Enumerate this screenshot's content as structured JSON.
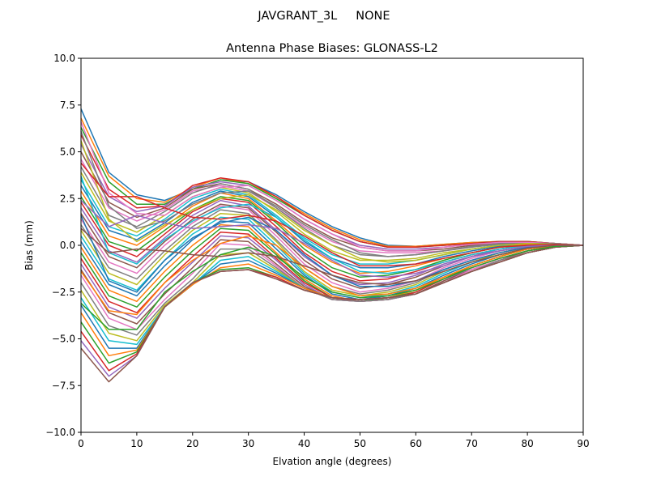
{
  "figure": {
    "suptitle": "JAVGRANT_3L     NONE"
  },
  "chart_data": {
    "type": "line",
    "title": "Antenna Phase Biases: GLONASS-L2",
    "xlabel": "Elvation angle (degrees)",
    "ylabel": "Bias (mm)",
    "xlim": [
      0,
      90
    ],
    "ylim": [
      -10,
      10
    ],
    "xticks": [
      0,
      10,
      20,
      30,
      40,
      50,
      60,
      70,
      80,
      90
    ],
    "xtick_labels": [
      "0",
      "10",
      "20",
      "30",
      "40",
      "50",
      "60",
      "70",
      "80",
      "90"
    ],
    "yticks": [
      -10,
      -7.5,
      -5,
      -2.5,
      0,
      2.5,
      5,
      7.5,
      10
    ],
    "ytick_labels": [
      "−10.0",
      "−7.5",
      "−5.0",
      "−2.5",
      "0.0",
      "2.5",
      "5.0",
      "7.5",
      "10.0"
    ],
    "grid": false,
    "legend": "none",
    "x": [
      0,
      5,
      10,
      15,
      20,
      25,
      30,
      35,
      40,
      45,
      50,
      55,
      60,
      65,
      70,
      75,
      80,
      85,
      90
    ],
    "colors": [
      "#1f77b4",
      "#ff7f0e",
      "#2ca02c",
      "#d62728",
      "#9467bd",
      "#8c564b",
      "#e377c2",
      "#7f7f7f",
      "#bcbd22",
      "#17becf"
    ],
    "series": [
      {
        "values": [
          7.3,
          3.9,
          2.7,
          2.4,
          3.0,
          3.5,
          3.4,
          2.7,
          1.8,
          1.0,
          0.4,
          0.0,
          -0.05,
          0.05,
          0.15,
          0.2,
          0.2,
          0.1,
          0.0
        ]
      },
      {
        "values": [
          6.8,
          3.7,
          2.5,
          2.3,
          3.1,
          3.6,
          3.3,
          2.6,
          1.7,
          0.9,
          0.3,
          -0.05,
          -0.05,
          0.05,
          0.15,
          0.2,
          0.2,
          0.1,
          0.0
        ]
      },
      {
        "values": [
          6.3,
          3.4,
          2.2,
          2.2,
          3.0,
          3.5,
          3.3,
          2.5,
          1.6,
          0.8,
          0.2,
          -0.1,
          -0.1,
          0.0,
          0.1,
          0.2,
          0.2,
          0.1,
          0.0
        ]
      },
      {
        "values": [
          5.9,
          3.0,
          2.0,
          2.1,
          3.2,
          3.6,
          3.4,
          2.6,
          1.6,
          0.8,
          0.2,
          -0.1,
          -0.1,
          0.0,
          0.1,
          0.2,
          0.2,
          0.1,
          0.0
        ]
      },
      {
        "values": [
          5.4,
          2.6,
          1.8,
          2.1,
          3.1,
          3.4,
          3.2,
          2.4,
          1.4,
          0.6,
          0.0,
          -0.2,
          -0.2,
          -0.1,
          0.05,
          0.15,
          0.15,
          0.1,
          0.0
        ]
      },
      {
        "values": [
          5.0,
          2.3,
          1.5,
          2.0,
          3.0,
          3.3,
          3.0,
          2.2,
          1.2,
          0.4,
          -0.1,
          -0.3,
          -0.3,
          -0.2,
          0.0,
          0.1,
          0.15,
          0.1,
          0.0
        ]
      },
      {
        "values": [
          4.6,
          2.0,
          1.3,
          1.9,
          2.9,
          3.2,
          2.9,
          2.0,
          1.0,
          0.2,
          -0.3,
          -0.4,
          -0.4,
          -0.3,
          -0.1,
          0.1,
          0.1,
          0.1,
          0.0
        ]
      },
      {
        "values": [
          4.2,
          1.6,
          1.0,
          1.8,
          2.8,
          3.3,
          3.0,
          2.0,
          0.9,
          0.0,
          -0.5,
          -0.6,
          -0.5,
          -0.3,
          -0.1,
          0.05,
          0.1,
          0.1,
          0.0
        ]
      },
      {
        "values": [
          3.9,
          1.3,
          0.7,
          1.6,
          2.6,
          3.1,
          2.8,
          1.8,
          0.6,
          -0.3,
          -0.8,
          -0.8,
          -0.7,
          -0.4,
          -0.2,
          0.0,
          0.1,
          0.05,
          0.0
        ]
      },
      {
        "values": [
          3.5,
          1.0,
          0.5,
          1.4,
          2.5,
          3.0,
          2.7,
          1.6,
          0.4,
          -0.5,
          -1.0,
          -1.0,
          -0.8,
          -0.5,
          -0.2,
          0.0,
          0.1,
          0.05,
          0.0
        ]
      },
      {
        "values": [
          3.2,
          0.8,
          0.3,
          1.2,
          2.3,
          2.9,
          2.6,
          1.5,
          0.2,
          -0.7,
          -1.2,
          -1.2,
          -1.0,
          -0.6,
          -0.3,
          -0.05,
          0.05,
          0.05,
          0.0
        ]
      },
      {
        "values": [
          2.9,
          0.5,
          0.0,
          1.0,
          2.1,
          2.8,
          2.5,
          1.3,
          0.0,
          -0.9,
          -1.5,
          -1.4,
          -1.1,
          -0.7,
          -0.4,
          -0.1,
          0.05,
          0.05,
          0.0
        ]
      },
      {
        "values": [
          2.6,
          0.2,
          -0.3,
          0.8,
          1.9,
          2.6,
          2.4,
          1.2,
          -0.2,
          -1.2,
          -1.7,
          -1.6,
          -1.3,
          -0.8,
          -0.4,
          -0.1,
          0.0,
          0.05,
          0.0
        ]
      },
      {
        "values": [
          2.3,
          0.0,
          -0.6,
          0.6,
          1.8,
          2.5,
          2.3,
          1.0,
          -0.4,
          -1.4,
          -1.9,
          -1.8,
          -1.4,
          -0.9,
          -0.5,
          -0.2,
          0.0,
          0.05,
          0.0
        ]
      },
      {
        "values": [
          2.0,
          -0.3,
          -0.9,
          0.4,
          1.6,
          2.4,
          2.1,
          0.8,
          -0.6,
          -1.6,
          -2.1,
          -2.0,
          -1.6,
          -1.0,
          -0.6,
          -0.2,
          0.0,
          0.0,
          0.0
        ]
      },
      {
        "values": [
          1.7,
          -0.6,
          -1.2,
          0.2,
          1.4,
          2.2,
          2.0,
          0.7,
          -0.8,
          -1.8,
          -2.3,
          -2.1,
          -1.7,
          -1.1,
          -0.6,
          -0.3,
          -0.05,
          0.0,
          0.0
        ]
      },
      {
        "values": [
          1.4,
          -0.9,
          -1.5,
          0.0,
          1.2,
          2.1,
          1.9,
          0.5,
          -1.0,
          -2.0,
          -2.5,
          -2.3,
          -1.9,
          -1.2,
          -0.7,
          -0.3,
          -0.05,
          0.0,
          0.0
        ]
      },
      {
        "values": [
          1.1,
          -1.2,
          -1.8,
          -0.3,
          1.0,
          1.9,
          1.7,
          0.3,
          -1.2,
          -2.2,
          -2.6,
          -2.4,
          -2.0,
          -1.3,
          -0.8,
          -0.4,
          -0.1,
          0.0,
          0.0
        ]
      },
      {
        "values": [
          0.8,
          -1.5,
          -2.1,
          -0.5,
          0.8,
          1.7,
          1.6,
          0.2,
          -1.4,
          -2.4,
          -2.7,
          -2.5,
          -2.1,
          -1.4,
          -0.9,
          -0.4,
          -0.1,
          0.0,
          0.0
        ]
      },
      {
        "values": [
          0.5,
          -1.8,
          -2.4,
          -0.8,
          0.6,
          1.5,
          1.4,
          0.0,
          -1.5,
          -2.5,
          -2.8,
          -2.6,
          -2.2,
          -1.5,
          -0.9,
          -0.5,
          -0.15,
          0.0,
          0.0
        ]
      },
      {
        "values": [
          0.2,
          -2.1,
          -2.7,
          -1.1,
          0.3,
          1.3,
          1.2,
          -0.2,
          -1.6,
          -2.6,
          -2.9,
          -2.7,
          -2.3,
          -1.6,
          -1.0,
          -0.5,
          -0.2,
          0.0,
          0.0
        ]
      },
      {
        "values": [
          -0.1,
          -2.4,
          -3.0,
          -1.4,
          0.0,
          1.1,
          1.0,
          -0.4,
          -1.8,
          -2.7,
          -3.0,
          -2.8,
          -2.4,
          -1.7,
          -1.1,
          -0.6,
          -0.2,
          0.0,
          0.0
        ]
      },
      {
        "values": [
          -0.4,
          -2.7,
          -3.3,
          -1.7,
          -0.3,
          0.9,
          0.8,
          -0.5,
          -1.9,
          -2.8,
          -3.0,
          -2.8,
          -2.5,
          -1.8,
          -1.1,
          -0.6,
          -0.2,
          0.0,
          0.0
        ]
      },
      {
        "values": [
          -0.7,
          -3.0,
          -3.6,
          -2.0,
          -0.6,
          0.7,
          0.6,
          -0.7,
          -2.0,
          -2.8,
          -3.0,
          -2.9,
          -2.5,
          -1.8,
          -1.2,
          -0.7,
          -0.3,
          -0.05,
          0.0
        ]
      },
      {
        "values": [
          -1.0,
          -3.3,
          -3.9,
          -2.3,
          -0.9,
          0.5,
          0.4,
          -0.8,
          -2.1,
          -2.9,
          -3.0,
          -2.9,
          -2.6,
          -1.9,
          -1.2,
          -0.7,
          -0.3,
          -0.05,
          0.0
        ]
      },
      {
        "values": [
          -1.3,
          -3.6,
          -4.2,
          -2.6,
          -1.2,
          0.3,
          0.2,
          -1.0,
          -2.2,
          -2.9,
          -3.0,
          -2.9,
          -2.6,
          -1.9,
          -1.3,
          -0.8,
          -0.3,
          -0.05,
          0.0
        ]
      },
      {
        "values": [
          -1.6,
          -3.9,
          -4.5,
          -2.9,
          -1.5,
          0.1,
          0.0,
          -1.1,
          -2.3,
          -2.9,
          -3.0,
          -2.9,
          -2.6,
          -2.0,
          -1.3,
          -0.8,
          -0.4,
          -0.1,
          0.0
        ]
      },
      {
        "values": [
          -2.0,
          -4.3,
          -4.8,
          -3.1,
          -1.8,
          -0.2,
          -0.2,
          -1.2,
          -2.3,
          -2.9,
          -3.0,
          -2.9,
          -2.6,
          -2.0,
          -1.4,
          -0.8,
          -0.4,
          -0.1,
          0.0
        ]
      },
      {
        "values": [
          -2.4,
          -4.7,
          -5.1,
          -3.2,
          -2.0,
          -0.5,
          -0.4,
          -1.3,
          -2.3,
          -2.8,
          -2.9,
          -2.8,
          -2.6,
          -2.0,
          -1.4,
          -0.9,
          -0.4,
          -0.1,
          0.0
        ]
      },
      {
        "values": [
          -2.8,
          -5.1,
          -5.3,
          -3.3,
          -2.1,
          -0.8,
          -0.6,
          -1.4,
          -2.3,
          -2.8,
          -2.9,
          -2.8,
          -2.6,
          -2.0,
          -1.4,
          -0.9,
          -0.4,
          -0.1,
          0.0
        ]
      },
      {
        "values": [
          -3.2,
          -5.5,
          -5.5,
          -3.3,
          -2.1,
          -1.0,
          -0.8,
          -1.5,
          -2.3,
          -2.8,
          -2.9,
          -2.8,
          -2.6,
          -2.0,
          -1.4,
          -0.9,
          -0.4,
          -0.1,
          0.0
        ]
      },
      {
        "values": [
          -3.6,
          -5.9,
          -5.6,
          -3.3,
          -2.1,
          -1.2,
          -1.0,
          -1.6,
          -2.3,
          -2.8,
          -2.9,
          -2.8,
          -2.6,
          -2.0,
          -1.4,
          -0.9,
          -0.4,
          -0.1,
          0.0
        ]
      },
      {
        "values": [
          -4.1,
          -6.3,
          -5.7,
          -3.3,
          -2.0,
          -1.3,
          -1.2,
          -1.7,
          -2.4,
          -2.8,
          -2.9,
          -2.8,
          -2.6,
          -2.0,
          -1.4,
          -0.9,
          -0.4,
          -0.1,
          0.0
        ]
      },
      {
        "values": [
          -4.6,
          -6.7,
          -5.8,
          -3.3,
          -2.0,
          -1.4,
          -1.3,
          -1.7,
          -2.4,
          -2.8,
          -2.9,
          -2.8,
          -2.6,
          -2.0,
          -1.4,
          -0.9,
          -0.4,
          -0.1,
          0.0
        ]
      },
      {
        "values": [
          -5.1,
          -7.0,
          -5.9,
          -3.3,
          -2.0,
          -1.4,
          -1.3,
          -1.8,
          -2.4,
          -2.8,
          -2.9,
          -2.8,
          -2.6,
          -2.0,
          -1.4,
          -0.9,
          -0.4,
          -0.1,
          0.0
        ]
      },
      {
        "values": [
          -5.5,
          -7.3,
          -5.9,
          -3.3,
          -2.0,
          -1.4,
          -1.3,
          -1.8,
          -2.4,
          -2.8,
          -2.9,
          -2.8,
          -2.6,
          -2.0,
          -1.4,
          -0.9,
          -0.4,
          -0.1,
          0.0
        ]
      },
      {
        "values": [
          6.6,
          2.8,
          1.7,
          1.6,
          2.6,
          3.1,
          3.2,
          2.4,
          1.4,
          0.6,
          -0.1,
          -0.3,
          -0.3,
          -0.1,
          0.05,
          0.15,
          0.15,
          0.1,
          0.0
        ]
      },
      {
        "values": [
          6.1,
          2.1,
          0.9,
          1.3,
          2.2,
          2.8,
          2.9,
          2.1,
          1.1,
          0.3,
          -0.4,
          -0.6,
          -0.5,
          -0.3,
          -0.05,
          0.1,
          0.1,
          0.1,
          0.0
        ]
      },
      {
        "values": [
          5.6,
          1.4,
          0.2,
          1.1,
          1.9,
          2.5,
          2.7,
          1.9,
          0.8,
          0.0,
          -0.7,
          -0.9,
          -0.8,
          -0.5,
          -0.2,
          0.0,
          0.1,
          0.05,
          0.0
        ]
      },
      {
        "values": [
          3.7,
          -0.4,
          -1.0,
          0.3,
          1.3,
          2.0,
          2.2,
          1.5,
          0.3,
          -0.7,
          -1.4,
          -1.5,
          -1.3,
          -0.9,
          -0.5,
          -0.2,
          0.0,
          0.0,
          0.0
        ]
      },
      {
        "values": [
          1.6,
          -1.9,
          -2.5,
          -0.8,
          0.4,
          1.2,
          1.5,
          0.8,
          -0.5,
          -1.6,
          -2.2,
          -2.2,
          -1.9,
          -1.3,
          -0.8,
          -0.4,
          -0.1,
          0.0,
          0.0
        ]
      },
      {
        "values": [
          -1.4,
          -3.5,
          -3.7,
          -2.0,
          -0.8,
          0.1,
          0.5,
          0.0,
          -1.2,
          -2.2,
          -2.7,
          -2.6,
          -2.3,
          -1.7,
          -1.1,
          -0.6,
          -0.2,
          0.0,
          0.0
        ]
      },
      {
        "values": [
          -3.1,
          -4.5,
          -4.5,
          -2.5,
          -1.4,
          -0.5,
          -0.1,
          -0.6,
          -1.7,
          -2.5,
          -2.8,
          -2.7,
          -2.4,
          -1.8,
          -1.2,
          -0.7,
          -0.3,
          -0.05,
          0.0
        ]
      },
      {
        "values": [
          4.4,
          2.6,
          2.6,
          2.0,
          1.5,
          1.4,
          1.6,
          1.3,
          0.5,
          -0.4,
          -1.1,
          -1.1,
          -1.0,
          -0.7,
          -0.4,
          -0.1,
          0.0,
          0.05,
          0.0
        ]
      },
      {
        "values": [
          2.4,
          1.0,
          1.6,
          1.2,
          0.9,
          1.0,
          1.1,
          0.9,
          0.1,
          -0.8,
          -1.6,
          -1.7,
          -1.5,
          -1.1,
          -0.6,
          -0.3,
          -0.05,
          0.0,
          0.0
        ]
      },
      {
        "values": [
          0.9,
          -0.4,
          -0.2,
          -0.3,
          -0.5,
          -0.6,
          -0.4,
          -0.6,
          -1.1,
          -1.6,
          -2.0,
          -2.1,
          -1.9,
          -1.4,
          -0.9,
          -0.5,
          -0.15,
          0.0,
          0.0
        ]
      }
    ]
  }
}
